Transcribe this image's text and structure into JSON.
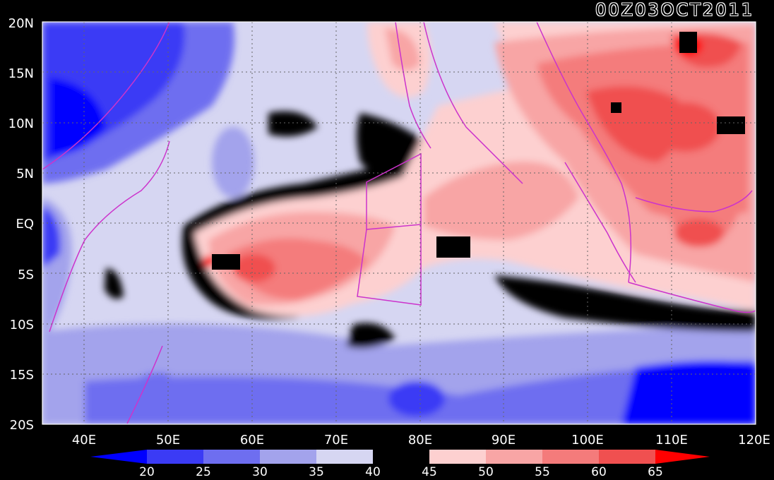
{
  "title": "00Z03OCT2011",
  "map": {
    "lon_range": [
      35,
      120
    ],
    "lat_range": [
      -20,
      20
    ],
    "lat_ticks": [
      "20N",
      "15N",
      "10N",
      "5N",
      "EQ",
      "5S",
      "10S",
      "15S",
      "20S"
    ],
    "lon_ticks": [
      "40E",
      "50E",
      "60E",
      "70E",
      "80E",
      "90E",
      "100E",
      "110E",
      "120E"
    ],
    "gridlines": "dotted",
    "coastline_color": "#cc33cc"
  },
  "colorbar": {
    "labels": [
      "20",
      "25",
      "30",
      "35",
      "40",
      "45",
      "50",
      "55",
      "60",
      "65"
    ],
    "colors": [
      "#0000ff",
      "#3b3bf5",
      "#6e6ef0",
      "#a3a3ec",
      "#d6d6f2",
      "#000000",
      "#fdd0d0",
      "#f8a5a5",
      "#f47b7b",
      "#f05050",
      "#ff0000"
    ]
  }
}
